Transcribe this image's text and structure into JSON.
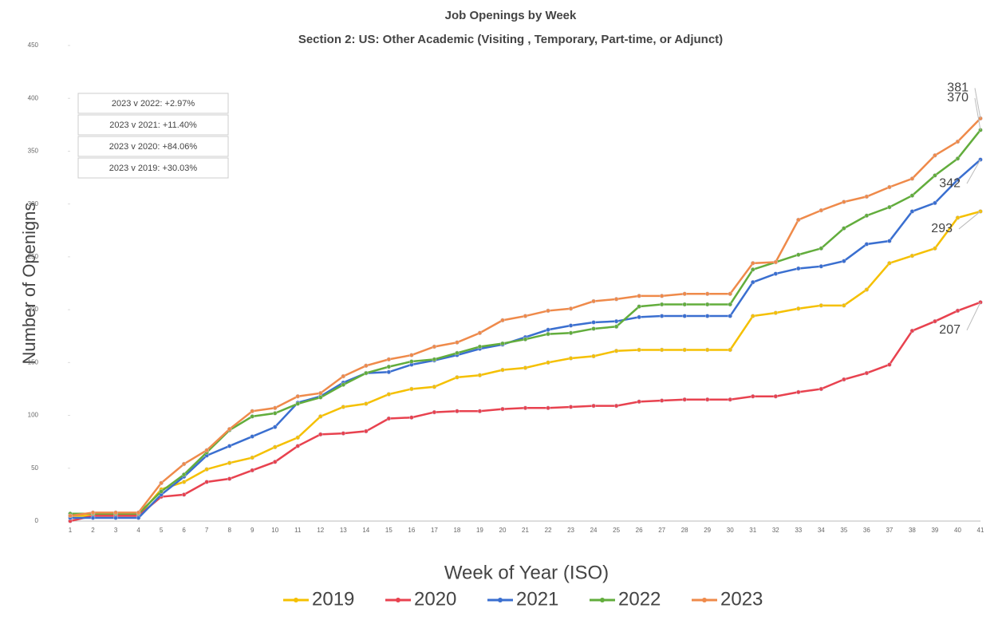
{
  "chart_data": {
    "type": "line",
    "title": "Job Openings by Week",
    "subtitle": "Section 2: US: Other Academic (Visiting , Temporary, Part-time, or Adjunct)",
    "x_label": "Week of Year (ISO)",
    "y_label": "Number of Openigns",
    "categories": [
      "1",
      "2",
      "3",
      "4",
      "5",
      "6",
      "7",
      "8",
      "9",
      "10",
      "11",
      "12",
      "13",
      "14",
      "15",
      "16",
      "17",
      "18",
      "19",
      "20",
      "21",
      "22",
      "23",
      "24",
      "25",
      "26",
      "27",
      "28",
      "29",
      "30",
      "31",
      "32",
      "33",
      "34",
      "35",
      "36",
      "37",
      "38",
      "39",
      "40",
      "41"
    ],
    "ylim": [
      0,
      450
    ],
    "yticks": [
      0,
      50,
      100,
      150,
      200,
      250,
      300,
      350,
      400,
      450
    ],
    "grid": false,
    "legend": "bottom",
    "annotations": [
      "2023 v 2022: +2.97%",
      "2023 v 2021: +11.40%",
      "2023 v 2020: +84.06%",
      "2023 v 2019: +30.03%"
    ],
    "series": [
      {
        "name": "2019",
        "color": "#f5c000",
        "values": [
          5,
          5,
          5,
          5,
          30,
          37,
          49,
          55,
          60,
          70,
          79,
          99,
          108,
          111,
          120,
          125,
          127,
          136,
          138,
          143,
          145,
          150,
          154,
          156,
          161,
          162,
          162,
          162,
          162,
          162,
          194,
          197,
          201,
          204,
          204,
          219,
          244,
          251,
          258,
          287,
          293
        ]
      },
      {
        "name": "2020",
        "color": "#e8424f",
        "values": [
          0,
          5,
          5,
          5,
          23,
          25,
          37,
          40,
          48,
          56,
          71,
          82,
          83,
          85,
          97,
          98,
          103,
          104,
          104,
          106,
          107,
          107,
          108,
          109,
          109,
          113,
          114,
          115,
          115,
          115,
          118,
          118,
          122,
          125,
          134,
          140,
          148,
          180,
          189,
          199,
          207
        ]
      },
      {
        "name": "2021",
        "color": "#3a6fd0",
        "values": [
          3,
          3,
          3,
          3,
          25,
          42,
          62,
          71,
          80,
          89,
          112,
          118,
          131,
          140,
          141,
          148,
          152,
          157,
          163,
          167,
          174,
          181,
          185,
          188,
          189,
          193,
          194,
          194,
          194,
          194,
          226,
          234,
          239,
          241,
          246,
          262,
          265,
          293,
          301,
          323,
          342
        ]
      },
      {
        "name": "2022",
        "color": "#62ad3c",
        "values": [
          7,
          7,
          7,
          7,
          28,
          44,
          65,
          86,
          99,
          102,
          111,
          117,
          129,
          140,
          146,
          151,
          153,
          159,
          165,
          168,
          172,
          177,
          178,
          182,
          184,
          203,
          205,
          205,
          205,
          205,
          238,
          245,
          252,
          258,
          277,
          289,
          297,
          308,
          327,
          343,
          370
        ]
      },
      {
        "name": "2023",
        "color": "#ef8a4a",
        "values": [
          5,
          8,
          8,
          8,
          36,
          54,
          67,
          87,
          104,
          107,
          118,
          121,
          137,
          147,
          153,
          157,
          165,
          169,
          178,
          190,
          194,
          199,
          201,
          208,
          210,
          213,
          213,
          215,
          215,
          215,
          244,
          245,
          285,
          294,
          302,
          307,
          316,
          324,
          346,
          359,
          381
        ]
      }
    ]
  }
}
